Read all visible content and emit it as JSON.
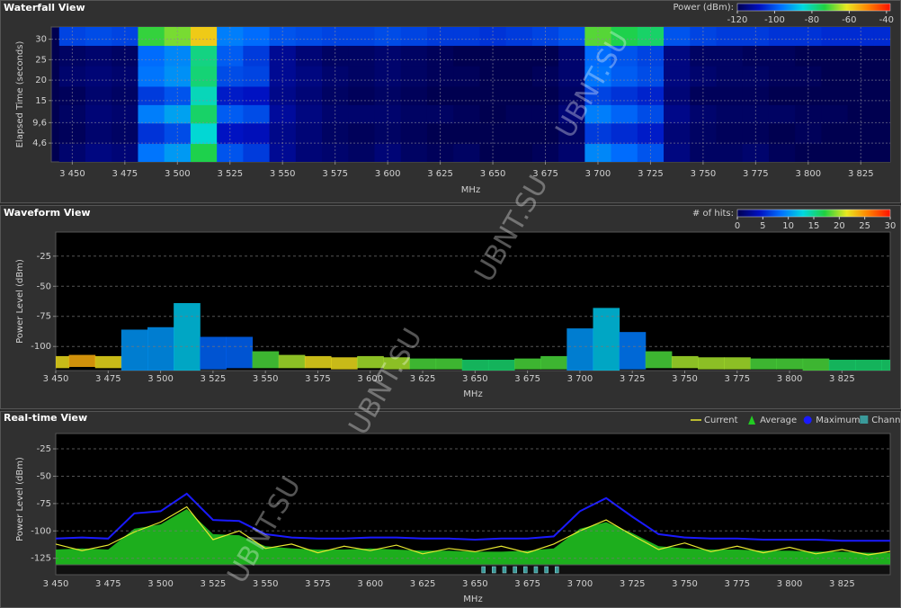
{
  "chart_data": [
    {
      "type": "heatmap",
      "title": "Waterfall View",
      "xlabel": "MHz",
      "ylabel": "Elapsed Time (seconds)",
      "x": [
        3450,
        3462.5,
        3475,
        3487.5,
        3500,
        3512.5,
        3525,
        3537.5,
        3550,
        3562.5,
        3575,
        3587.5,
        3600,
        3612.5,
        3625,
        3637.5,
        3650,
        3662.5,
        3675,
        3687.5,
        3700,
        3712.5,
        3725,
        3737.5,
        3750,
        3762.5,
        3775,
        3787.5,
        3800,
        3812.5,
        3825,
        3837.5,
        3850
      ],
      "y": [
        2,
        7,
        12,
        16,
        21,
        26,
        31
      ],
      "z": [
        [
          -117,
          -115,
          -116,
          -96,
          -92,
          -74,
          -100,
          -103,
          -113,
          -116,
          -117,
          -118,
          -116,
          -118,
          -119,
          -118,
          -120,
          -121,
          -119,
          -117,
          -94,
          -97,
          -100,
          -115,
          -118,
          -118,
          -117,
          -119,
          -120,
          -120,
          -121,
          -121,
          -120
        ],
        [
          -119,
          -117,
          -118,
          -104,
          -101,
          -84,
          -108,
          -109,
          -114,
          -116,
          -118,
          -119,
          -118,
          -119,
          -120,
          -120,
          -121,
          -120,
          -120,
          -118,
          -103,
          -105,
          -107,
          -116,
          -118,
          -119,
          -119,
          -120,
          -119,
          -121,
          -120,
          -122,
          -121
        ],
        [
          -118,
          -116,
          -117,
          -95,
          -91,
          -76,
          -99,
          -101,
          -112,
          -115,
          -117,
          -117,
          -117,
          -118,
          -118,
          -119,
          -120,
          -119,
          -119,
          -116,
          -95,
          -98,
          -101,
          -114,
          -117,
          -118,
          -118,
          -118,
          -119,
          -119,
          -120,
          -120,
          -121
        ],
        [
          -119,
          -117,
          -118,
          -103,
          -100,
          -82,
          -107,
          -108,
          -114,
          -116,
          -118,
          -119,
          -118,
          -119,
          -120,
          -120,
          -120,
          -121,
          -120,
          -118,
          -102,
          -104,
          -106,
          -116,
          -119,
          -119,
          -119,
          -120,
          -120,
          -121,
          -121,
          -121,
          -122
        ],
        [
          -117,
          -116,
          -117,
          -96,
          -93,
          -77,
          -101,
          -102,
          -113,
          -115,
          -117,
          -118,
          -117,
          -118,
          -119,
          -119,
          -120,
          -120,
          -119,
          -117,
          -96,
          -99,
          -101,
          -115,
          -117,
          -118,
          -118,
          -119,
          -119,
          -120,
          -120,
          -121,
          -121
        ],
        [
          -118,
          -117,
          -118,
          -97,
          -94,
          -78,
          -99,
          -103,
          -113,
          -116,
          -118,
          -118,
          -117,
          -118,
          -119,
          -120,
          -120,
          -121,
          -120,
          -117,
          -97,
          -100,
          -102,
          -115,
          -118,
          -118,
          -119,
          -119,
          -120,
          -120,
          -121,
          -121,
          -121
        ],
        [
          -102,
          -101,
          -102,
          -72,
          -68,
          -58,
          -95,
          -97,
          -100,
          -101,
          -102,
          -102,
          -101,
          -102,
          -103,
          -103,
          -104,
          -103,
          -102,
          -100,
          -70,
          -74,
          -76,
          -100,
          -102,
          -103,
          -103,
          -104,
          -104,
          -105,
          -105,
          -105,
          -106
        ]
      ],
      "xlim": [
        3440,
        3839
      ],
      "ylim": [
        0,
        33
      ],
      "xticks": [
        {
          "value": 3450,
          "label": "3 450"
        },
        {
          "value": 3475,
          "label": "3 475"
        },
        {
          "value": 3500,
          "label": "3 500"
        },
        {
          "value": 3525,
          "label": "3 525"
        },
        {
          "value": 3550,
          "label": "3 550"
        },
        {
          "value": 3575,
          "label": "3 575"
        },
        {
          "value": 3600,
          "label": "3 600"
        },
        {
          "value": 3625,
          "label": "3 625"
        },
        {
          "value": 3650,
          "label": "3 650"
        },
        {
          "value": 3675,
          "label": "3 675"
        },
        {
          "value": 3700,
          "label": "3 700"
        },
        {
          "value": 3725,
          "label": "3 725"
        },
        {
          "value": 3750,
          "label": "3 750"
        },
        {
          "value": 3775,
          "label": "3 775"
        },
        {
          "value": 3800,
          "label": "3 800"
        },
        {
          "value": 3825,
          "label": "3 825"
        }
      ],
      "yticks": [
        {
          "value": 4.6,
          "label": "4,6"
        },
        {
          "value": 9.6,
          "label": "9,6"
        },
        15,
        20,
        25,
        30
      ],
      "grid": true,
      "colorbar": {
        "label": "Power (dBm):",
        "lim": [
          -120,
          -38
        ],
        "ticks": [
          -120,
          -100,
          -80,
          -60,
          -40
        ],
        "colormap": [
          "#000050",
          "#0010c0",
          "#0070ff",
          "#00d8e0",
          "#20d040",
          "#e8e820",
          "#ff8000",
          "#ff1000"
        ]
      }
    },
    {
      "type": "density",
      "title": "Waveform View",
      "xlabel": "MHz",
      "ylabel": "Power Level (dBm)",
      "x": [
        3450,
        3462.5,
        3475,
        3487.5,
        3500,
        3512.5,
        3525,
        3537.5,
        3550,
        3562.5,
        3575,
        3587.5,
        3600,
        3612.5,
        3625,
        3637.5,
        3650,
        3662.5,
        3675,
        3687.5,
        3700,
        3712.5,
        3725,
        3737.5,
        3750,
        3762.5,
        3775,
        3787.5,
        3800,
        3812.5,
        3825,
        3837.5,
        3850
      ],
      "upper": [
        -108,
        -107,
        -108,
        -86,
        -84,
        -64,
        -92,
        -92,
        -104,
        -107,
        -108,
        -109,
        -108,
        -109,
        -110,
        -110,
        -111,
        -111,
        -110,
        -108,
        -85,
        -68,
        -88,
        -104,
        -108,
        -109,
        -109,
        -110,
        -110,
        -110,
        -111,
        -111,
        -111
      ],
      "lower": [
        -118,
        -117,
        -118,
        -120,
        -120,
        -120,
        -119,
        -118,
        -118,
        -118,
        -118,
        -119,
        -118,
        -119,
        -119,
        -119,
        -120,
        -120,
        -119,
        -119,
        -120,
        -120,
        -119,
        -118,
        -118,
        -119,
        -119,
        -119,
        -119,
        -120,
        -120,
        -120,
        -120
      ],
      "hits": [
        22,
        24,
        22,
        10,
        10,
        12,
        8,
        8,
        18,
        20,
        22,
        22,
        20,
        20,
        18,
        18,
        16,
        16,
        18,
        18,
        10,
        12,
        9,
        18,
        20,
        20,
        20,
        18,
        18,
        18,
        16,
        16,
        16
      ],
      "xlim": [
        3450,
        3848
      ],
      "ylim": [
        -120,
        -5
      ],
      "xticks": [
        {
          "value": 3450,
          "label": "3 450"
        },
        {
          "value": 3475,
          "label": "3 475"
        },
        {
          "value": 3500,
          "label": "3 500"
        },
        {
          "value": 3525,
          "label": "3 525"
        },
        {
          "value": 3550,
          "label": "3 550"
        },
        {
          "value": 3575,
          "label": "3 575"
        },
        {
          "value": 3600,
          "label": "3 600"
        },
        {
          "value": 3625,
          "label": "3 625"
        },
        {
          "value": 3650,
          "label": "3 650"
        },
        {
          "value": 3675,
          "label": "3 675"
        },
        {
          "value": 3700,
          "label": "3 700"
        },
        {
          "value": 3725,
          "label": "3 725"
        },
        {
          "value": 3750,
          "label": "3 750"
        },
        {
          "value": 3775,
          "label": "3 775"
        },
        {
          "value": 3800,
          "label": "3 800"
        },
        {
          "value": 3825,
          "label": "3 825"
        }
      ],
      "yticks": [
        -100,
        -75,
        -50,
        -25
      ],
      "grid": true,
      "colorbar": {
        "label": "# of hits:",
        "lim": [
          0,
          30
        ],
        "ticks": [
          0,
          5,
          10,
          15,
          20,
          25,
          30
        ],
        "colormap": [
          "#000050",
          "#0010c0",
          "#0070ff",
          "#00d8e0",
          "#20d040",
          "#e8e820",
          "#ff8000",
          "#ff1000"
        ]
      }
    },
    {
      "type": "line",
      "title": "Real-time View",
      "xlabel": "MHz",
      "ylabel": "Power Level (dBm)",
      "x": [
        3450,
        3462.5,
        3475,
        3487.5,
        3500,
        3512.5,
        3525,
        3537.5,
        3550,
        3562.5,
        3575,
        3587.5,
        3600,
        3612.5,
        3625,
        3637.5,
        3650,
        3662.5,
        3675,
        3687.5,
        3700,
        3712.5,
        3725,
        3737.5,
        3750,
        3762.5,
        3775,
        3787.5,
        3800,
        3812.5,
        3825,
        3837.5,
        3850
      ],
      "series": [
        {
          "name": "Current",
          "color": "#e8e830",
          "values": [
            -112,
            -118,
            -113,
            -101,
            -92,
            -78,
            -108,
            -100,
            -116,
            -112,
            -120,
            -114,
            -118,
            -113,
            -121,
            -116,
            -119,
            -114,
            -120,
            -112,
            -100,
            -90,
            -104,
            -117,
            -111,
            -119,
            -114,
            -120,
            -115,
            -121,
            -117,
            -122,
            -118
          ]
        },
        {
          "name": "Average",
          "color": "#22cc22",
          "values": [
            -117,
            -116,
            -117,
            -98,
            -94,
            -80,
            -103,
            -104,
            -114,
            -116,
            -117,
            -117,
            -116,
            -117,
            -118,
            -118,
            -119,
            -119,
            -118,
            -116,
            -98,
            -92,
            -102,
            -114,
            -116,
            -117,
            -117,
            -118,
            -118,
            -119,
            -119,
            -120,
            -120
          ]
        },
        {
          "name": "Maximum",
          "color": "#1a1aff",
          "values": [
            -107,
            -106,
            -107,
            -84,
            -82,
            -66,
            -90,
            -91,
            -103,
            -106,
            -107,
            -107,
            -106,
            -106,
            -107,
            -107,
            -108,
            -107,
            -107,
            -105,
            -82,
            -70,
            -87,
            -103,
            -106,
            -107,
            -107,
            -108,
            -108,
            -108,
            -109,
            -109,
            -109
          ]
        },
        {
          "name": "Channels",
          "color": "#3a9a9a",
          "x": [
            3654,
            3659,
            3664,
            3669,
            3674,
            3679,
            3684,
            3689
          ]
        }
      ],
      "xlim": [
        3450,
        3848
      ],
      "ylim": [
        -131,
        -11
      ],
      "xticks": [
        {
          "value": 3450,
          "label": "3 450"
        },
        {
          "value": 3475,
          "label": "3 475"
        },
        {
          "value": 3500,
          "label": "3 500"
        },
        {
          "value": 3525,
          "label": "3 525"
        },
        {
          "value": 3550,
          "label": "3 550"
        },
        {
          "value": 3575,
          "label": "3 575"
        },
        {
          "value": 3600,
          "label": "3 600"
        },
        {
          "value": 3625,
          "label": "3 625"
        },
        {
          "value": 3650,
          "label": "3 650"
        },
        {
          "value": 3675,
          "label": "3 675"
        },
        {
          "value": 3700,
          "label": "3 700"
        },
        {
          "value": 3725,
          "label": "3 725"
        },
        {
          "value": 3750,
          "label": "3 750"
        },
        {
          "value": 3775,
          "label": "3 775"
        },
        {
          "value": 3800,
          "label": "3 800"
        },
        {
          "value": 3825,
          "label": "3 825"
        }
      ],
      "yticks": [
        -125,
        -100,
        -75,
        -50,
        -25
      ],
      "grid": true
    }
  ],
  "watermark": "UBNT.SU"
}
